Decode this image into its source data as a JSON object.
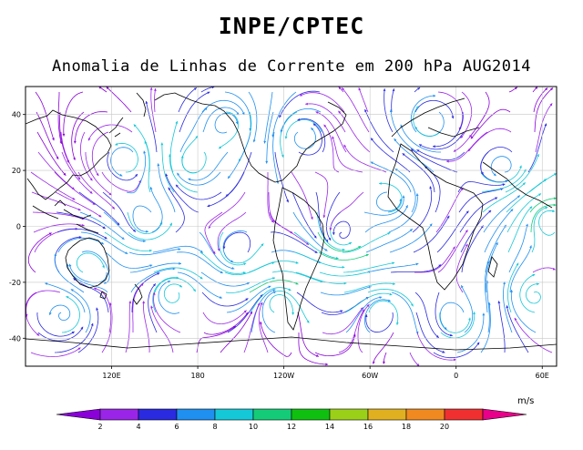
{
  "header": {
    "title": "INPE/CPTEC",
    "subtitle": "Anomalia de Linhas de Corrente em 200 hPa AUG2014"
  },
  "map": {
    "projection": "cylindrical",
    "lon_range": [
      60,
      430
    ],
    "lat_range": [
      -50,
      50
    ],
    "y_ticks": [
      {
        "value": 40,
        "label": "40"
      },
      {
        "value": 20,
        "label": "20"
      },
      {
        "value": 0,
        "label": "0"
      },
      {
        "value": -20,
        "label": "-20"
      },
      {
        "value": -40,
        "label": "-40"
      }
    ],
    "x_ticks": [
      {
        "value": 120,
        "label": "120E"
      },
      {
        "value": 180,
        "label": "180"
      },
      {
        "value": 240,
        "label": "120W"
      },
      {
        "value": 300,
        "label": "60W"
      },
      {
        "value": 360,
        "label": "0"
      },
      {
        "value": 420,
        "label": "60E"
      }
    ],
    "grid": true,
    "layers": [
      "streamlines",
      "coastlines"
    ]
  },
  "colorbar": {
    "units": "m/s",
    "labels": [
      "2",
      "4",
      "6",
      "8",
      "10",
      "12",
      "14",
      "16",
      "18",
      "20"
    ],
    "colors": [
      "#8a00d8",
      "#9a25e8",
      "#2a2ae0",
      "#1f8ff0",
      "#14c8d8",
      "#14cc78",
      "#10c010",
      "#9ad018",
      "#e0b020",
      "#f08a20",
      "#f03030",
      "#e8008a"
    ]
  }
}
